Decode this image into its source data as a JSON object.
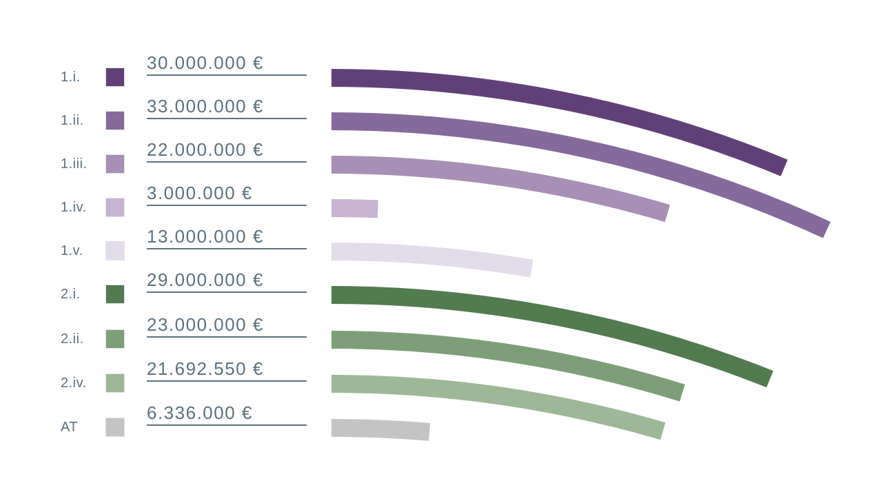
{
  "chart_data": {
    "type": "bar",
    "variant": "curved-arc-bars",
    "title": "",
    "unit": "EUR",
    "legend_position": "left",
    "grid": false,
    "categories": [
      "1.i.",
      "1.ii.",
      "1.iii.",
      "1.iv.",
      "1.v.",
      "2.i.",
      "2.ii.",
      "2.iv.",
      "AT"
    ],
    "values": [
      30000000,
      33000000,
      22000000,
      3000000,
      13000000,
      29000000,
      23000000,
      21692550,
      6336000
    ],
    "value_labels": [
      "30.000.000 €",
      "33.000.000 €",
      "22.000.000 €",
      "3.000.000 €",
      "13.000.000 €",
      "29.000.000 €",
      "23.000.000 €",
      "21.692.550 €",
      "6.336.000 €"
    ],
    "colors": [
      "#614078",
      "#866a9c",
      "#a78fb5",
      "#c6b4d2",
      "#e3dcea",
      "#527b50",
      "#7d9f78",
      "#9db896",
      "#c4c4c4"
    ],
    "text_color": "#5b7180",
    "groups": {
      "purple_group_prefix": "1",
      "green_group_prefix": "2",
      "gray_row": "AT"
    }
  }
}
